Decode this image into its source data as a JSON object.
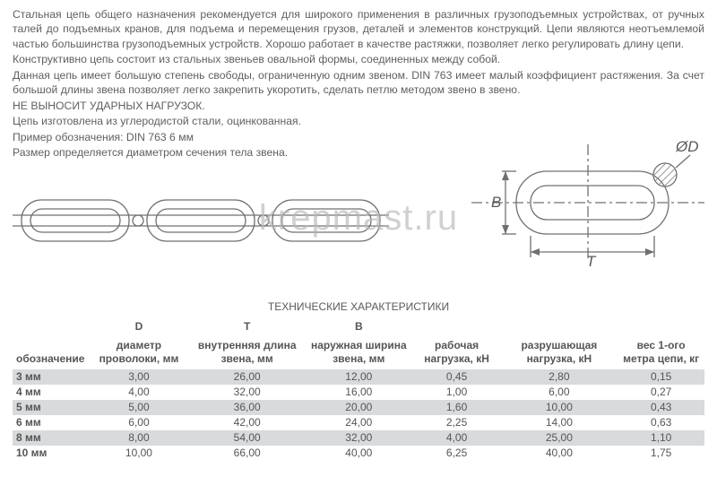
{
  "description": {
    "p1": "Стальная цепь общего назначения рекомендуется для широкого применения в различных грузоподъемных устройствах, от ручных талей до подъемных кранов, для подъема и перемещения грузов, деталей и элементов конструкций. Цепи являются неотъемлемой частью большинства грузоподъемных устройств. Хорошо работает в качестве растяжки, позволяет легко регулировать длину цепи.",
    "p2": "Конструктивно цепь состоит из стальных звеньев овальной формы, соединенных между собой.",
    "p3": "Данная цепь имеет большую степень свободы, ограниченную одним звеном. DIN 763 имеет малый коэффициент растяжения. За счет большой длины звена позволяет легко закрепить укоротить, сделать петлю методом звено в звено.",
    "p4": "НЕ ВЫНОСИТ УДАРНЫХ НАГРУЗОК.",
    "p5": "Цепь изготовлена из углеродистой стали, оцинкованная.",
    "p6": "Пример обозначения: DIN 763 6 мм",
    "p7": "Размер определяется диаметром сечения тела звена."
  },
  "diagram": {
    "labels": {
      "B": "B",
      "T": "T",
      "D": "ØD"
    },
    "stroke": "#707070",
    "stroke_width": 1.3,
    "hatch": "#8a8a8a"
  },
  "watermark": "krepmast.ru",
  "spec": {
    "title": "ТЕХНИЧЕСКИЕ ХАРАКТЕРИСТИКИ",
    "columns": [
      {
        "top": "",
        "bottom": "обозначение",
        "align": "left"
      },
      {
        "top": "D",
        "bottom": "диаметр проволоки, мм",
        "align": "center"
      },
      {
        "top": "T",
        "bottom": "внутренняя длина звена, мм",
        "align": "center"
      },
      {
        "top": "B",
        "bottom": "наружная ширина звена, мм",
        "align": "center"
      },
      {
        "top": "",
        "bottom": "рабочая нагрузка, кН",
        "align": "center"
      },
      {
        "top": "",
        "bottom": "разрушающая нагрузка, кН",
        "align": "center"
      },
      {
        "top": "",
        "bottom": "вес 1-ого метра цепи, кг",
        "align": "center"
      }
    ],
    "rows": [
      {
        "stripe": true,
        "cells": [
          "3 мм",
          "3,00",
          "26,00",
          "12,00",
          "0,45",
          "2,80",
          "0,15"
        ]
      },
      {
        "stripe": false,
        "cells": [
          "4 мм",
          "4,00",
          "32,00",
          "16,00",
          "1,00",
          "6,00",
          "0,27"
        ]
      },
      {
        "stripe": true,
        "cells": [
          "5 мм",
          "5,00",
          "36,00",
          "20,00",
          "1,60",
          "10,00",
          "0,43"
        ]
      },
      {
        "stripe": false,
        "cells": [
          "6 мм",
          "6,00",
          "42,00",
          "24,00",
          "2,25",
          "14,00",
          "0,63"
        ]
      },
      {
        "stripe": true,
        "cells": [
          "8 мм",
          "8,00",
          "54,00",
          "32,00",
          "4,00",
          "25,00",
          "1,10"
        ]
      },
      {
        "stripe": false,
        "cells": [
          "10 мм",
          "10,00",
          "66,00",
          "40,00",
          "6,25",
          "40,00",
          "1,75"
        ]
      }
    ]
  }
}
